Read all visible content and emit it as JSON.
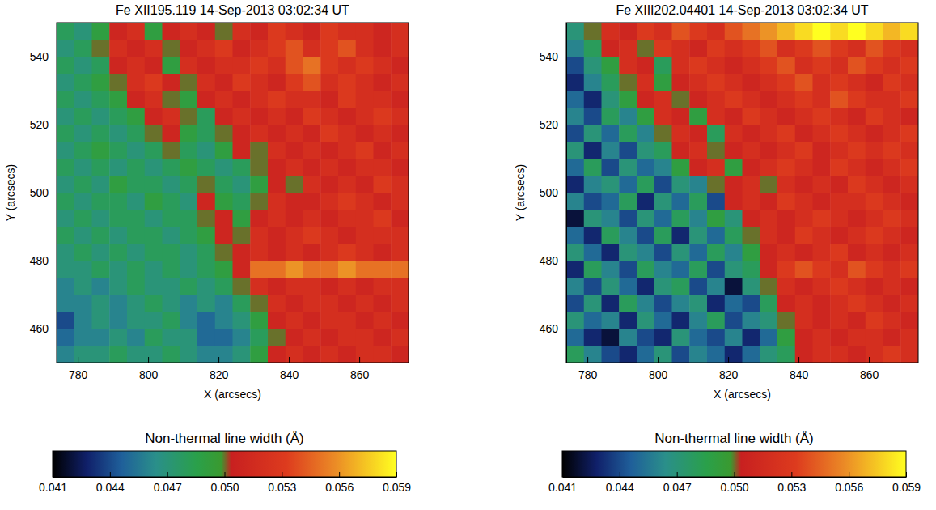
{
  "chart_data": [
    {
      "type": "heatmap",
      "title": "Fe XII195.119 14-Sep-2013 03:02:34 UT",
      "x_label": "X (arcsecs)",
      "y_label": "Y (arcsecs)",
      "xlim": [
        774,
        874
      ],
      "ylim": [
        450,
        550
      ],
      "xticks": [
        780,
        800,
        820,
        840,
        860
      ],
      "yticks": [
        460,
        480,
        500,
        520,
        540
      ],
      "x": [
        776.5,
        781.5,
        786.5,
        791.5,
        796.5,
        801.5,
        806.5,
        811.5,
        816.5,
        821.5,
        826.5,
        831.5,
        836.5,
        841.5,
        846.5,
        851.5,
        856.5,
        861.5,
        866.5,
        871.5
      ],
      "y": [
        547.5,
        542.5,
        537.5,
        532.5,
        527.5,
        522.5,
        517.5,
        512.5,
        507.5,
        502.5,
        497.5,
        492.5,
        487.5,
        482.5,
        477.5,
        472.5,
        467.5,
        462.5,
        457.5,
        452.5
      ],
      "cells": [
        [
          0.048,
          0.047,
          0.049,
          0.051,
          0.052,
          0.049,
          0.051,
          0.052,
          0.051,
          0.05,
          0.052,
          0.051,
          0.053,
          0.052,
          0.051,
          0.053,
          0.052,
          0.052,
          0.051,
          0.052
        ],
        [
          0.047,
          0.048,
          0.05,
          0.052,
          0.051,
          0.052,
          0.05,
          0.051,
          0.052,
          0.053,
          0.051,
          0.052,
          0.053,
          0.054,
          0.052,
          0.053,
          0.054,
          0.052,
          0.051,
          0.052
        ],
        [
          0.048,
          0.047,
          0.048,
          0.051,
          0.052,
          0.051,
          0.049,
          0.052,
          0.051,
          0.052,
          0.052,
          0.053,
          0.052,
          0.054,
          0.055,
          0.053,
          0.052,
          0.053,
          0.052,
          0.051
        ],
        [
          0.047,
          0.048,
          0.049,
          0.05,
          0.052,
          0.053,
          0.051,
          0.05,
          0.052,
          0.051,
          0.053,
          0.052,
          0.051,
          0.053,
          0.054,
          0.052,
          0.053,
          0.052,
          0.051,
          0.052
        ],
        [
          0.048,
          0.047,
          0.048,
          0.049,
          0.051,
          0.052,
          0.05,
          0.049,
          0.051,
          0.052,
          0.051,
          0.052,
          0.053,
          0.052,
          0.052,
          0.051,
          0.053,
          0.052,
          0.052,
          0.051
        ],
        [
          0.047,
          0.048,
          0.047,
          0.048,
          0.049,
          0.051,
          0.052,
          0.05,
          0.048,
          0.051,
          0.052,
          0.051,
          0.052,
          0.051,
          0.053,
          0.052,
          0.051,
          0.052,
          0.053,
          0.052
        ],
        [
          0.048,
          0.047,
          0.048,
          0.047,
          0.048,
          0.05,
          0.051,
          0.049,
          0.048,
          0.05,
          0.051,
          0.052,
          0.051,
          0.052,
          0.051,
          0.053,
          0.052,
          0.051,
          0.052,
          0.051
        ],
        [
          0.047,
          0.048,
          0.049,
          0.048,
          0.047,
          0.048,
          0.05,
          0.048,
          0.047,
          0.049,
          0.051,
          0.05,
          0.052,
          0.051,
          0.052,
          0.051,
          0.052,
          0.053,
          0.051,
          0.052
        ],
        [
          0.048,
          0.047,
          0.048,
          0.047,
          0.048,
          0.047,
          0.048,
          0.049,
          0.048,
          0.047,
          0.048,
          0.05,
          0.051,
          0.052,
          0.051,
          0.052,
          0.051,
          0.052,
          0.052,
          0.051
        ],
        [
          0.047,
          0.048,
          0.047,
          0.049,
          0.048,
          0.048,
          0.047,
          0.048,
          0.05,
          0.048,
          0.047,
          0.049,
          0.051,
          0.05,
          0.052,
          0.051,
          0.052,
          0.051,
          0.053,
          0.052
        ],
        [
          0.048,
          0.047,
          0.048,
          0.048,
          0.047,
          0.049,
          0.048,
          0.047,
          0.051,
          0.049,
          0.048,
          0.05,
          0.052,
          0.051,
          0.051,
          0.052,
          0.053,
          0.052,
          0.051,
          0.052
        ],
        [
          0.047,
          0.048,
          0.047,
          0.048,
          0.048,
          0.047,
          0.048,
          0.048,
          0.05,
          0.051,
          0.049,
          0.051,
          0.052,
          0.051,
          0.052,
          0.051,
          0.052,
          0.052,
          0.053,
          0.051
        ],
        [
          0.048,
          0.047,
          0.048,
          0.047,
          0.048,
          0.048,
          0.047,
          0.048,
          0.049,
          0.051,
          0.05,
          0.052,
          0.051,
          0.052,
          0.053,
          0.052,
          0.051,
          0.052,
          0.052,
          0.052
        ],
        [
          0.047,
          0.048,
          0.047,
          0.048,
          0.047,
          0.048,
          0.048,
          0.047,
          0.048,
          0.05,
          0.051,
          0.052,
          0.051,
          0.052,
          0.051,
          0.052,
          0.053,
          0.052,
          0.051,
          0.052
        ],
        [
          0.047,
          0.047,
          0.048,
          0.047,
          0.048,
          0.047,
          0.048,
          0.047,
          0.048,
          0.049,
          0.051,
          0.055,
          0.055,
          0.056,
          0.055,
          0.055,
          0.056,
          0.055,
          0.055,
          0.055
        ],
        [
          0.046,
          0.047,
          0.046,
          0.047,
          0.048,
          0.047,
          0.047,
          0.048,
          0.047,
          0.048,
          0.05,
          0.052,
          0.051,
          0.052,
          0.052,
          0.051,
          0.052,
          0.051,
          0.052,
          0.052
        ],
        [
          0.046,
          0.046,
          0.047,
          0.046,
          0.047,
          0.048,
          0.047,
          0.046,
          0.047,
          0.046,
          0.048,
          0.05,
          0.052,
          0.051,
          0.052,
          0.052,
          0.051,
          0.052,
          0.051,
          0.052
        ],
        [
          0.044,
          0.046,
          0.047,
          0.046,
          0.047,
          0.047,
          0.048,
          0.046,
          0.045,
          0.046,
          0.047,
          0.049,
          0.051,
          0.052,
          0.051,
          0.052,
          0.052,
          0.051,
          0.052,
          0.051
        ],
        [
          0.045,
          0.046,
          0.046,
          0.047,
          0.046,
          0.048,
          0.047,
          0.047,
          0.045,
          0.045,
          0.046,
          0.048,
          0.05,
          0.051,
          0.052,
          0.051,
          0.052,
          0.052,
          0.051,
          0.052
        ],
        [
          0.046,
          0.047,
          0.047,
          0.048,
          0.047,
          0.047,
          0.048,
          0.047,
          0.046,
          0.046,
          0.047,
          0.049,
          0.051,
          0.052,
          0.051,
          0.052,
          0.051,
          0.052,
          0.052,
          0.051
        ]
      ],
      "colorbar": {
        "label": "Non-thermal line width (Å)",
        "range": [
          0.041,
          0.059
        ],
        "ticks": [
          0.041,
          0.044,
          0.047,
          {
            "value": 0.05,
            "label": "0.050"
          },
          0.053,
          0.056,
          0.059
        ]
      }
    },
    {
      "type": "heatmap",
      "title": "Fe XIII202.04401 14-Sep-2013 03:02:34 UT",
      "x_label": "X (arcsecs)",
      "y_label": "Y (arcsecs)",
      "xlim": [
        774,
        874
      ],
      "ylim": [
        450,
        550
      ],
      "xticks": [
        780,
        800,
        820,
        840,
        860
      ],
      "yticks": [
        460,
        480,
        500,
        520,
        540
      ],
      "x": [
        776.5,
        781.5,
        786.5,
        791.5,
        796.5,
        801.5,
        806.5,
        811.5,
        816.5,
        821.5,
        826.5,
        831.5,
        836.5,
        841.5,
        846.5,
        851.5,
        856.5,
        861.5,
        866.5,
        871.5
      ],
      "y": [
        547.5,
        542.5,
        537.5,
        532.5,
        527.5,
        522.5,
        517.5,
        512.5,
        507.5,
        502.5,
        497.5,
        492.5,
        487.5,
        482.5,
        477.5,
        472.5,
        467.5,
        462.5,
        457.5,
        452.5
      ],
      "cells": [
        [
          0.047,
          0.05,
          0.052,
          0.051,
          0.053,
          0.052,
          0.054,
          0.053,
          0.052,
          0.054,
          0.055,
          0.056,
          0.057,
          0.058,
          0.059,
          0.058,
          0.059,
          0.058,
          0.057,
          0.058
        ],
        [
          0.046,
          0.048,
          0.051,
          0.052,
          0.05,
          0.053,
          0.052,
          0.051,
          0.053,
          0.052,
          0.053,
          0.054,
          0.052,
          0.053,
          0.054,
          0.053,
          0.052,
          0.054,
          0.053,
          0.052
        ],
        [
          0.044,
          0.047,
          0.049,
          0.052,
          0.051,
          0.048,
          0.052,
          0.053,
          0.052,
          0.051,
          0.052,
          0.053,
          0.054,
          0.052,
          0.053,
          0.052,
          0.054,
          0.053,
          0.052,
          0.053
        ],
        [
          0.043,
          0.046,
          0.048,
          0.05,
          0.052,
          0.049,
          0.051,
          0.052,
          0.053,
          0.052,
          0.051,
          0.052,
          0.053,
          0.054,
          0.052,
          0.053,
          0.052,
          0.051,
          0.053,
          0.052
        ],
        [
          0.045,
          0.043,
          0.047,
          0.049,
          0.051,
          0.052,
          0.05,
          0.051,
          0.052,
          0.053,
          0.052,
          0.051,
          0.052,
          0.053,
          0.052,
          0.054,
          0.053,
          0.052,
          0.052,
          0.053
        ],
        [
          0.046,
          0.044,
          0.048,
          0.046,
          0.049,
          0.052,
          0.051,
          0.049,
          0.052,
          0.051,
          0.053,
          0.052,
          0.051,
          0.052,
          0.053,
          0.052,
          0.051,
          0.053,
          0.052,
          0.051
        ],
        [
          0.044,
          0.047,
          0.045,
          0.048,
          0.046,
          0.05,
          0.052,
          0.051,
          0.048,
          0.052,
          0.051,
          0.052,
          0.053,
          0.051,
          0.052,
          0.053,
          0.052,
          0.051,
          0.052,
          0.053
        ],
        [
          0.047,
          0.043,
          0.046,
          0.044,
          0.047,
          0.048,
          0.051,
          0.052,
          0.05,
          0.051,
          0.052,
          0.051,
          0.052,
          0.053,
          0.051,
          0.052,
          0.053,
          0.052,
          0.053,
          0.052
        ],
        [
          0.045,
          0.048,
          0.044,
          0.047,
          0.045,
          0.046,
          0.049,
          0.051,
          0.052,
          0.049,
          0.051,
          0.052,
          0.053,
          0.052,
          0.051,
          0.053,
          0.052,
          0.051,
          0.052,
          0.053
        ],
        [
          0.043,
          0.046,
          0.047,
          0.045,
          0.048,
          0.044,
          0.047,
          0.046,
          0.05,
          0.051,
          0.052,
          0.05,
          0.052,
          0.051,
          0.052,
          0.051,
          0.053,
          0.052,
          0.051,
          0.052
        ],
        [
          0.046,
          0.044,
          0.045,
          0.048,
          0.043,
          0.047,
          0.045,
          0.048,
          0.044,
          0.051,
          0.052,
          0.051,
          0.053,
          0.052,
          0.051,
          0.052,
          0.052,
          0.053,
          0.052,
          0.051
        ],
        [
          0.042,
          0.047,
          0.046,
          0.044,
          0.047,
          0.045,
          0.048,
          0.046,
          0.049,
          0.047,
          0.051,
          0.052,
          0.051,
          0.052,
          0.053,
          0.052,
          0.051,
          0.052,
          0.053,
          0.052
        ],
        [
          0.045,
          0.043,
          0.048,
          0.046,
          0.044,
          0.048,
          0.043,
          0.047,
          0.045,
          0.048,
          0.05,
          0.052,
          0.051,
          0.053,
          0.052,
          0.051,
          0.052,
          0.053,
          0.052,
          0.051
        ],
        [
          0.047,
          0.045,
          0.043,
          0.047,
          0.046,
          0.044,
          0.047,
          0.045,
          0.048,
          0.046,
          0.049,
          0.051,
          0.052,
          0.051,
          0.052,
          0.053,
          0.051,
          0.052,
          0.051,
          0.052
        ],
        [
          0.043,
          0.048,
          0.046,
          0.044,
          0.048,
          0.046,
          0.045,
          0.048,
          0.044,
          0.047,
          0.048,
          0.051,
          0.053,
          0.054,
          0.053,
          0.052,
          0.054,
          0.053,
          0.052,
          0.053
        ],
        [
          0.046,
          0.044,
          0.047,
          0.045,
          0.043,
          0.047,
          0.048,
          0.044,
          0.046,
          0.042,
          0.047,
          0.05,
          0.052,
          0.051,
          0.052,
          0.053,
          0.052,
          0.051,
          0.052,
          0.051
        ],
        [
          0.044,
          0.047,
          0.043,
          0.048,
          0.046,
          0.044,
          0.046,
          0.047,
          0.043,
          0.045,
          0.044,
          0.048,
          0.051,
          0.052,
          0.051,
          0.052,
          0.053,
          0.052,
          0.051,
          0.052
        ],
        [
          0.047,
          0.045,
          0.046,
          0.043,
          0.047,
          0.045,
          0.043,
          0.046,
          0.048,
          0.044,
          0.046,
          0.047,
          0.05,
          0.052,
          0.051,
          0.052,
          0.051,
          0.053,
          0.052,
          0.051
        ],
        [
          0.045,
          0.043,
          0.042,
          0.046,
          0.044,
          0.043,
          0.047,
          0.045,
          0.044,
          0.046,
          0.043,
          0.045,
          0.049,
          0.051,
          0.052,
          0.051,
          0.052,
          0.052,
          0.051,
          0.052
        ],
        [
          0.048,
          0.046,
          0.044,
          0.043,
          0.045,
          0.047,
          0.044,
          0.046,
          0.045,
          0.043,
          0.045,
          0.047,
          0.048,
          0.051,
          0.052,
          0.052,
          0.051,
          0.052,
          0.053,
          0.052
        ]
      ],
      "colorbar": {
        "label": "Non-thermal line width (Å)",
        "range": [
          0.041,
          0.059
        ],
        "ticks": [
          0.041,
          0.044,
          0.047,
          {
            "value": 0.05,
            "label": "0.050"
          },
          0.053,
          0.056,
          0.059
        ]
      }
    }
  ]
}
